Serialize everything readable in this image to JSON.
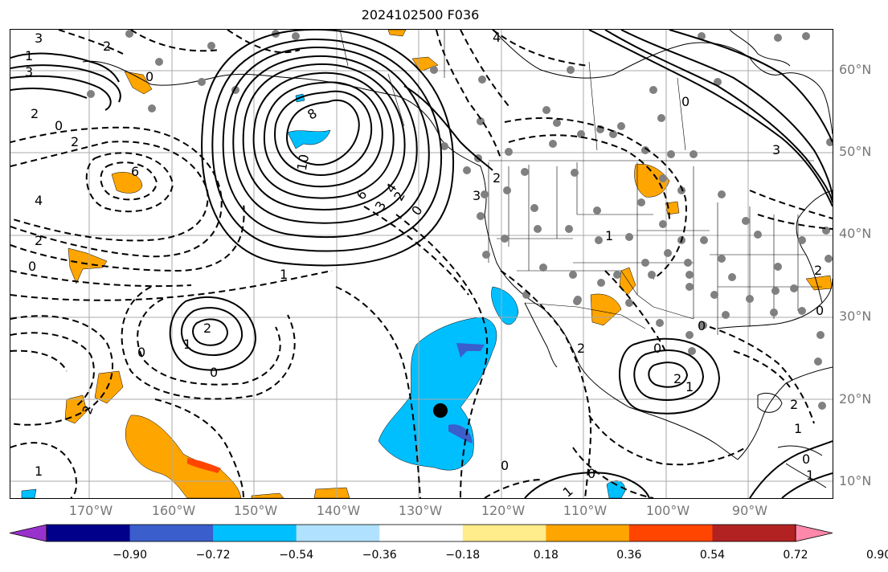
{
  "title": "2024102500 F036",
  "lat_labels": [
    "60°N",
    "50°N",
    "40°N",
    "30°N",
    "20°N",
    "10°N"
  ],
  "lon_labels": [
    "170°W",
    "160°W",
    "150°W",
    "140°W",
    "130°W",
    "120°W",
    "110°W",
    "100°W",
    "90°W"
  ],
  "colorbar": {
    "colors": [
      "#9932cc",
      "#00008b",
      "#3a5fcd",
      "#00bfff",
      "#b0e2ff",
      "#ffffff",
      "#ffec8b",
      "#ffa500",
      "#ff4500",
      "#b22222",
      "#ff88aa"
    ],
    "ticks": [
      "−0.90",
      "−0.72",
      "−0.54",
      "−0.36",
      "−0.18",
      "0.18",
      "0.36",
      "0.54",
      "0.72",
      "0.90"
    ]
  },
  "contour_labels": [
    "3",
    "2",
    "1",
    "0",
    "2",
    "3",
    "0",
    "2",
    "8",
    "10",
    "6",
    "4",
    "3",
    "2",
    "0",
    "6",
    "4",
    "2",
    "0",
    "1",
    "2",
    "1",
    "0",
    "0",
    "2",
    "1",
    "0",
    "2",
    "3",
    "4",
    "3",
    "0",
    "1",
    "2",
    "2",
    "0",
    "0",
    "1",
    "1",
    "2",
    "0",
    "0",
    "2",
    "1",
    "0",
    "1"
  ]
}
